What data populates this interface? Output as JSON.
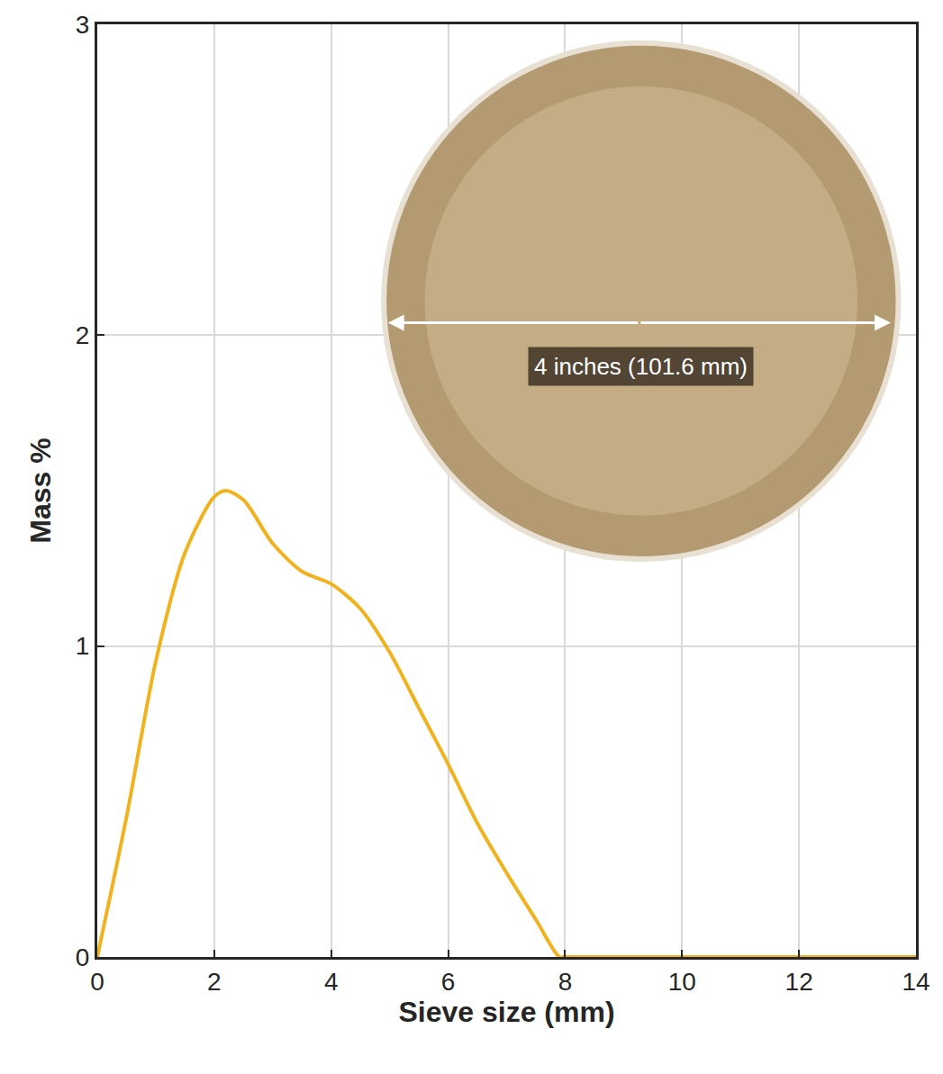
{
  "chart_data": {
    "type": "line",
    "x_label": "Sieve size (mm)",
    "y_label": "Mass %",
    "annotation": "4 inches (101.6 mm)",
    "x": [
      0,
      0.5,
      1,
      1.5,
      2,
      2.2,
      2.5,
      3,
      3.5,
      4,
      4.5,
      5,
      5.5,
      6,
      6.5,
      7,
      7.5,
      7.9,
      8,
      10,
      12,
      14
    ],
    "values": [
      0,
      0.45,
      0.95,
      1.3,
      1.48,
      1.5,
      1.47,
      1.33,
      1.24,
      1.2,
      1.12,
      0.98,
      0.8,
      0.62,
      0.43,
      0.27,
      0.12,
      0,
      0,
      0,
      0,
      0
    ],
    "color": "#f0b21e",
    "xlim": [
      0,
      14
    ],
    "xticks": [
      0,
      2,
      4,
      6,
      8,
      10,
      12,
      14
    ],
    "ylim": [
      0,
      3
    ],
    "yticks": [
      0,
      1,
      2,
      3
    ],
    "grid": true
  }
}
